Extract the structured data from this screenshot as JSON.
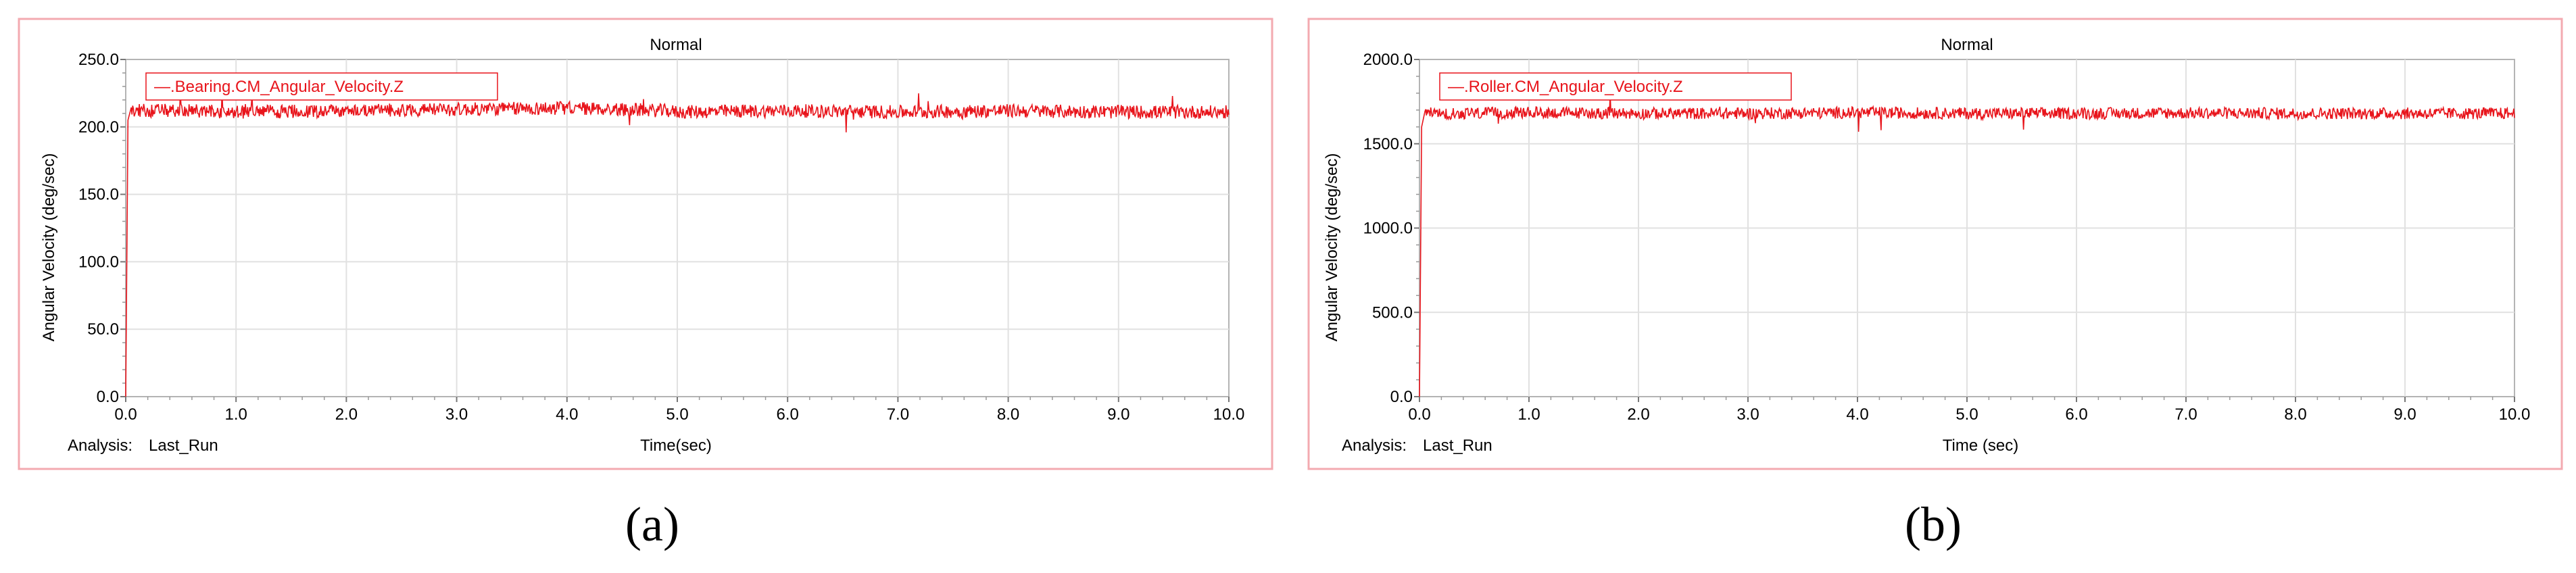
{
  "chart_data": [
    {
      "type": "line",
      "title": "Normal",
      "xlabel": "Time(sec)",
      "ylabel": "Angular Velocity (deg/sec)",
      "xlim": [
        0,
        10
      ],
      "ylim": [
        0,
        250
      ],
      "x_ticks": [
        "0.0",
        "1.0",
        "2.0",
        "3.0",
        "4.0",
        "5.0",
        "6.0",
        "7.0",
        "8.0",
        "9.0",
        "10.0"
      ],
      "y_ticks": [
        "0.0",
        "50.0",
        "100.0",
        "150.0",
        "200.0",
        "250.0"
      ],
      "grid": true,
      "legend_position": "top-left",
      "analysis_label": "Analysis:",
      "analysis_value": "Last_Run",
      "caption": "(a)",
      "series": [
        {
          "name": "—.Bearing.CM_Angular_Velocity.Z",
          "color": "#e8141b",
          "x": [
            0,
            0.02,
            0.05,
            0.5,
            1.0,
            2.0,
            3.0,
            4.0,
            4.9,
            5.0,
            6.0,
            7.0,
            8.0,
            9.0,
            10.0
          ],
          "y": [
            0,
            205,
            212,
            212,
            211,
            212,
            213,
            214,
            212,
            211,
            212,
            211,
            212,
            211,
            211
          ],
          "mean": 212,
          "noise_amplitude": 5
        }
      ]
    },
    {
      "type": "line",
      "title": "Normal",
      "xlabel": "Time (sec)",
      "ylabel": "Angular Velocity (deg/sec)",
      "xlim": [
        0,
        10
      ],
      "ylim": [
        0,
        2000
      ],
      "x_ticks": [
        "0.0",
        "1.0",
        "2.0",
        "3.0",
        "4.0",
        "5.0",
        "6.0",
        "7.0",
        "8.0",
        "9.0",
        "10.0"
      ],
      "y_ticks": [
        "0.0",
        "500.0",
        "1000.0",
        "1500.0",
        "2000.0"
      ],
      "grid": true,
      "legend_position": "top-left",
      "analysis_label": "Analysis:",
      "analysis_value": "Last_Run",
      "caption": "(b)",
      "series": [
        {
          "name": "—.Roller.CM_Angular_Velocity.Z",
          "color": "#e8141b",
          "x": [
            0,
            0.02,
            0.05,
            0.5,
            1.0,
            2.0,
            3.0,
            4.0,
            5.0,
            6.0,
            7.0,
            8.0,
            9.0,
            10.0
          ],
          "y": [
            0,
            1600,
            1680,
            1680,
            1685,
            1680,
            1680,
            1685,
            1680,
            1680,
            1682,
            1680,
            1680,
            1680
          ],
          "mean": 1680,
          "noise_amplitude": 35
        }
      ]
    }
  ]
}
